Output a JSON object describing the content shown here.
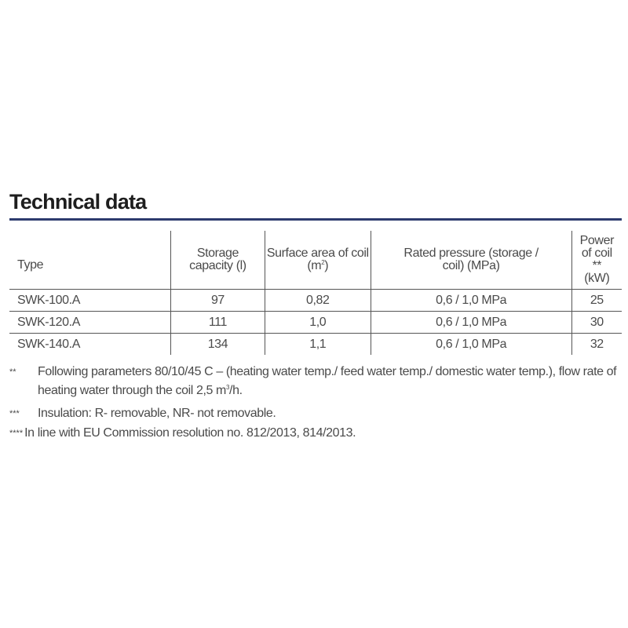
{
  "title": "Technical data",
  "table": {
    "headers": {
      "type": "Type",
      "storage": "Storage capacity  (l)",
      "surface_a": "Surface area of coil (m",
      "surface_sup": "2",
      "surface_b": ")",
      "pressure": "Rated pressure (storage / coil) (MPa)",
      "power": "Power of coil ** (kW)"
    },
    "rows": [
      {
        "type": "SWK-100.A",
        "storage": "97",
        "surface": "0,82",
        "pressure": "0,6 / 1,0 MPa",
        "power": "25"
      },
      {
        "type": "SWK-120.A",
        "storage": "111",
        "surface": "1,0",
        "pressure": "0,6 / 1,0 MPa",
        "power": "30"
      },
      {
        "type": "SWK-140.A",
        "storage": "134",
        "surface": "1,1",
        "pressure": "0,6 / 1,0 MPa",
        "power": "32"
      }
    ]
  },
  "notes": [
    {
      "mark": "**",
      "text_a": "Following parameters 80/10/45 C – (heating water temp./ feed water temp./ domestic water temp.), flow rate of heating water through the coil 2,5 m",
      "sup": "3",
      "text_b": "/h."
    },
    {
      "mark": "***",
      "text": "Insulation:  R- removable, NR- not removable."
    },
    {
      "mark": "****",
      "text": "In line with EU Commission resolution no. 812/2013, 814/2013."
    }
  ]
}
